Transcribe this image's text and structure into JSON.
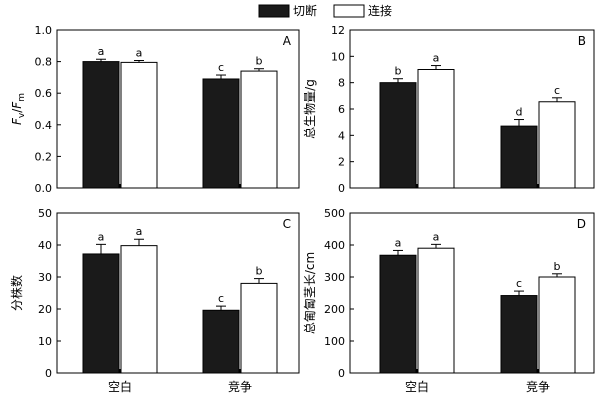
{
  "legend": {
    "items": [
      {
        "label": "切断",
        "fill": "#1a1a1a"
      },
      {
        "label": "连接",
        "fill": "#ffffff"
      }
    ]
  },
  "x_categories": [
    "空白",
    "竞争"
  ],
  "chart_data": [
    {
      "type": "bar",
      "panel": "A",
      "ylabel_parts": [
        {
          "text": "F",
          "italic": true
        },
        {
          "text": "v",
          "sub": true
        },
        {
          "text": "/",
          "italic": false
        },
        {
          "text": "F",
          "italic": true
        },
        {
          "text": "m",
          "sub": true
        }
      ],
      "ylim": [
        0,
        1.0
      ],
      "yticks": [
        0.0,
        0.2,
        0.4,
        0.6,
        0.8,
        1.0
      ],
      "ytick_labels": [
        "0.0",
        "0.2",
        "0.4",
        "0.6",
        "0.8",
        "1.0"
      ],
      "categories": [
        "空白",
        "竞争"
      ],
      "series": [
        {
          "name": "切断",
          "values": [
            0.8,
            0.69
          ],
          "errors": [
            0.015,
            0.025
          ],
          "labels": [
            "a",
            "c"
          ]
        },
        {
          "name": "连接",
          "values": [
            0.795,
            0.74
          ],
          "errors": [
            0.012,
            0.015
          ],
          "labels": [
            "a",
            "b"
          ]
        }
      ]
    },
    {
      "type": "bar",
      "panel": "B",
      "ylabel": "总生物量/g",
      "ylim": [
        0,
        12
      ],
      "yticks": [
        0,
        2,
        4,
        6,
        8,
        10,
        12
      ],
      "ytick_labels": [
        "0",
        "2",
        "4",
        "6",
        "8",
        "10",
        "12"
      ],
      "categories": [
        "空白",
        "竞争"
      ],
      "series": [
        {
          "name": "切断",
          "values": [
            8.0,
            4.7
          ],
          "errors": [
            0.3,
            0.5
          ],
          "labels": [
            "b",
            "d"
          ]
        },
        {
          "name": "连接",
          "values": [
            9.0,
            6.55
          ],
          "errors": [
            0.3,
            0.3
          ],
          "labels": [
            "a",
            "c"
          ]
        }
      ]
    },
    {
      "type": "bar",
      "panel": "C",
      "ylabel": "分株数",
      "ylim": [
        0,
        50
      ],
      "yticks": [
        0,
        10,
        20,
        30,
        40,
        50
      ],
      "ytick_labels": [
        "0",
        "10",
        "20",
        "30",
        "40",
        "50"
      ],
      "categories": [
        "空白",
        "竞争"
      ],
      "series": [
        {
          "name": "切断",
          "values": [
            37.2,
            19.6
          ],
          "errors": [
            3.0,
            1.3
          ],
          "labels": [
            "a",
            "c"
          ]
        },
        {
          "name": "连接",
          "values": [
            39.8,
            28.0
          ],
          "errors": [
            2.0,
            1.5
          ],
          "labels": [
            "a",
            "b"
          ]
        }
      ]
    },
    {
      "type": "bar",
      "panel": "D",
      "ylabel": "总匍匐茎长/cm",
      "ylim": [
        0,
        500
      ],
      "yticks": [
        0,
        100,
        200,
        300,
        400,
        500
      ],
      "ytick_labels": [
        "0",
        "100",
        "200",
        "300",
        "400",
        "500"
      ],
      "categories": [
        "空白",
        "竞争"
      ],
      "series": [
        {
          "name": "切断",
          "values": [
            368,
            242
          ],
          "errors": [
            15,
            14
          ],
          "labels": [
            "a",
            "c"
          ]
        },
        {
          "name": "连接",
          "values": [
            390,
            300
          ],
          "errors": [
            12,
            10
          ],
          "labels": [
            "a",
            "b"
          ]
        }
      ]
    }
  ]
}
